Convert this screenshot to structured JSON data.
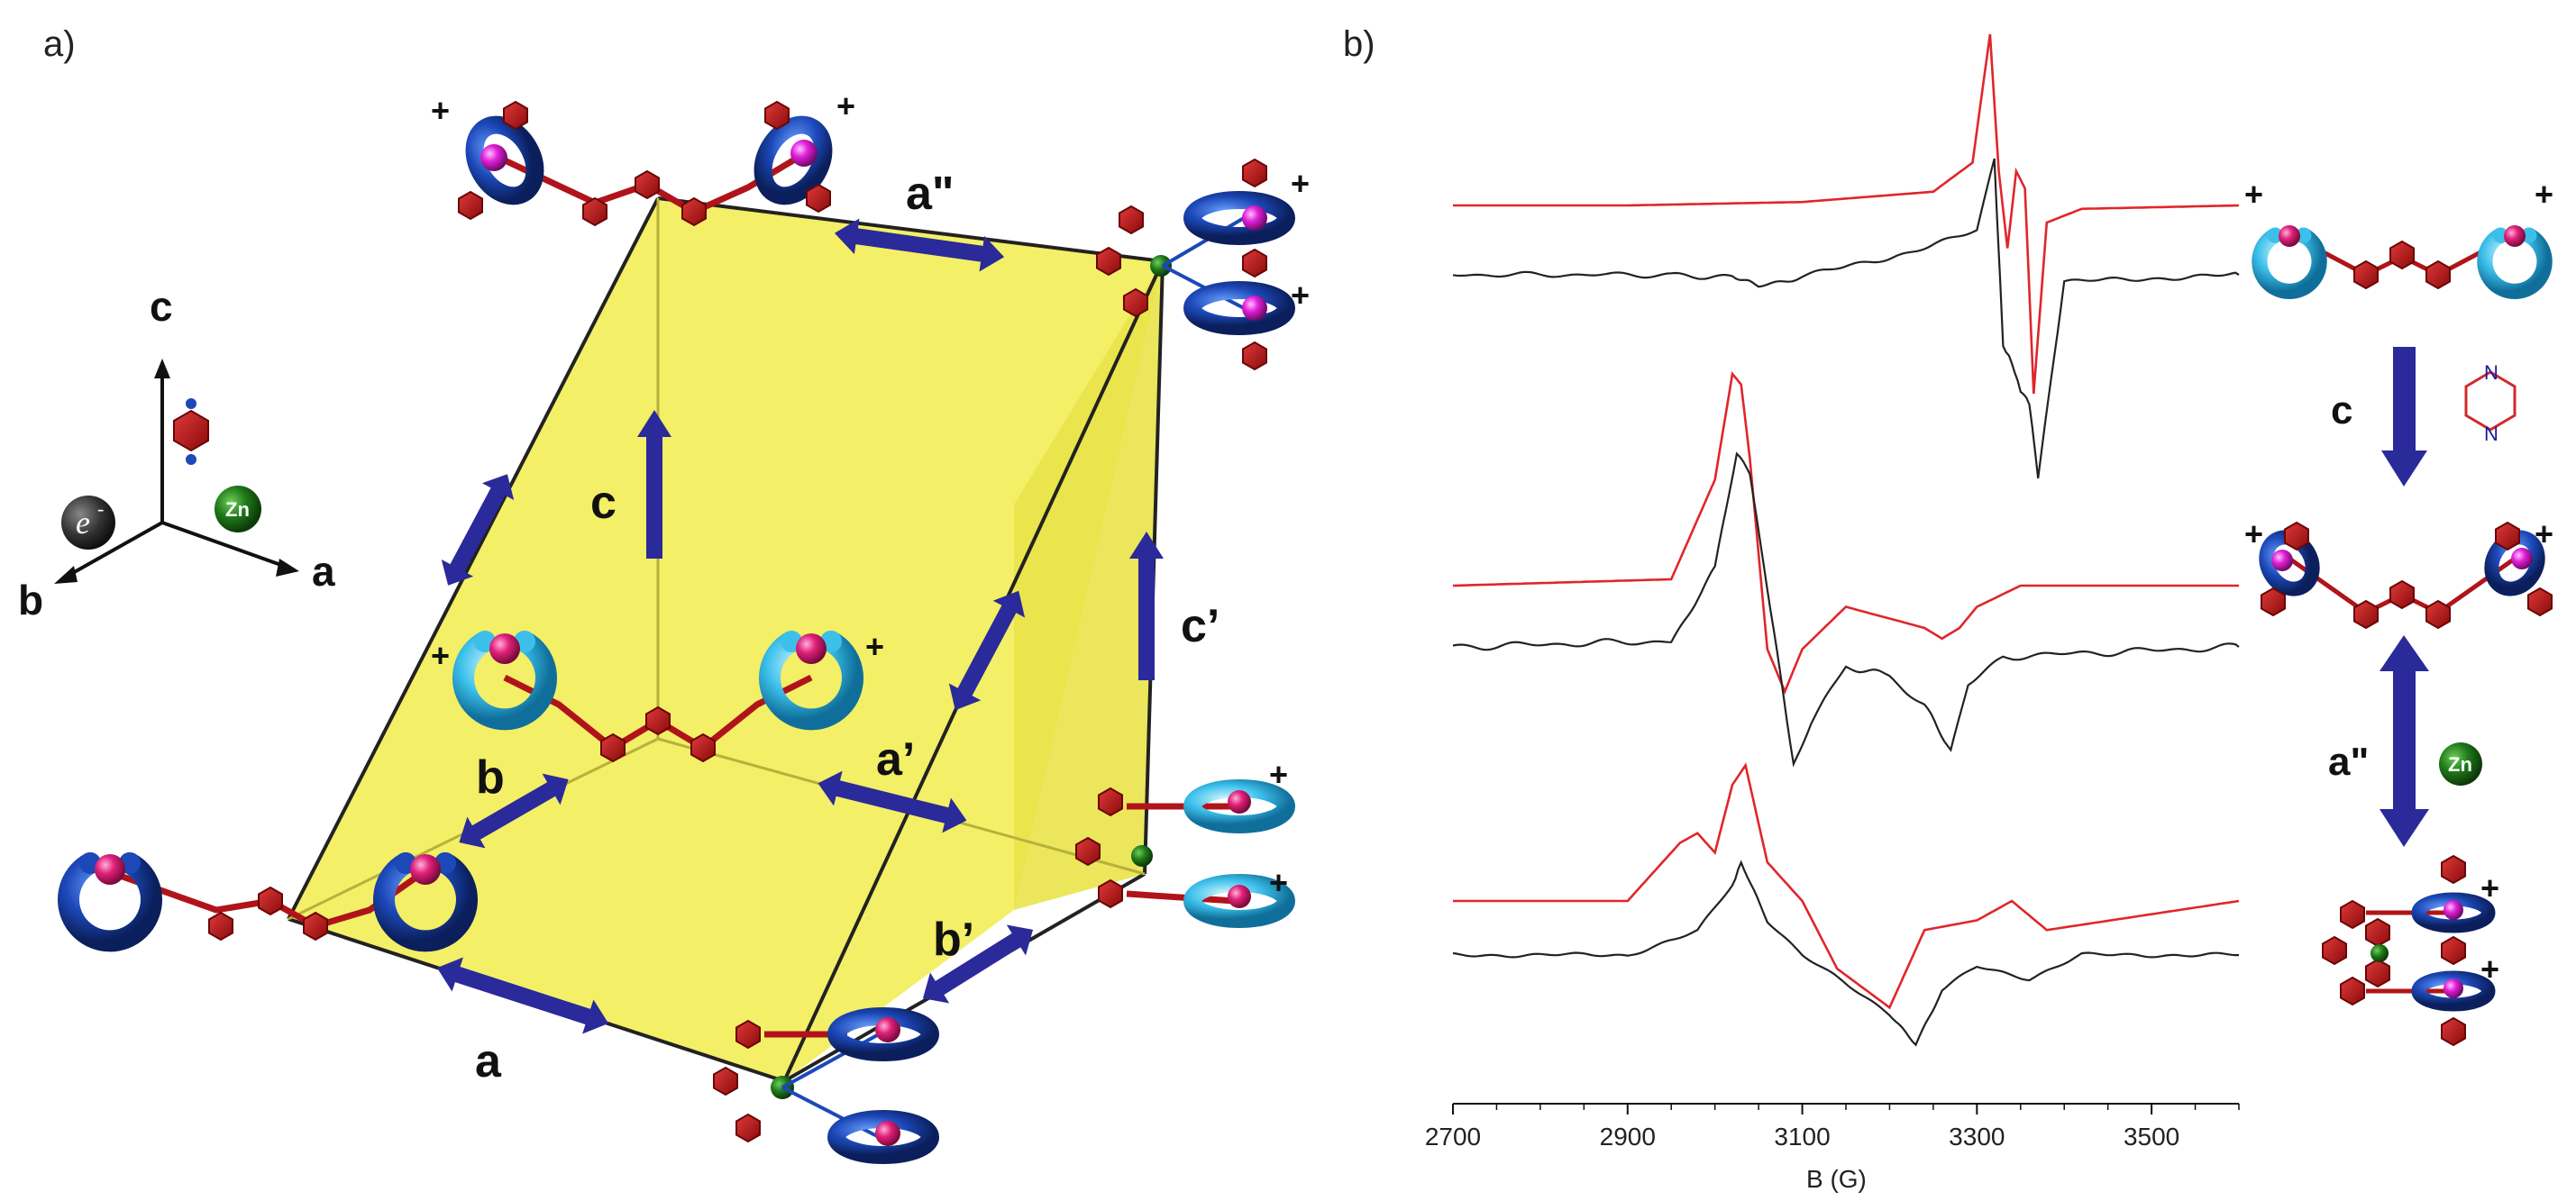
{
  "panel_a": {
    "label": "a)",
    "edges": {
      "a": "a",
      "b": "b",
      "c": "c",
      "a_prime": "a’",
      "b_prime": "b’",
      "c_prime": "c’",
      "a_double": "a\""
    },
    "axes": {
      "a": "a",
      "b": "b",
      "c": "c",
      "electron": "e",
      "electron_sup": "-",
      "zn": "Zn"
    },
    "charge": "+"
  },
  "panel_b": {
    "label": "b)",
    "steps": {
      "c": "c",
      "a_double": "a\""
    },
    "pyrazine_n": "N",
    "zn": "Zn",
    "charge": "+"
  },
  "chart_data": {
    "type": "line",
    "title": "",
    "xlabel": "B (G)",
    "ylabel": "",
    "xlim": [
      2700,
      3600
    ],
    "x_ticks": [
      2700,
      2900,
      3100,
      3300,
      3500
    ],
    "grid": false,
    "series_description": "EPR spectra, three stacked traces; red = simulated, black = experimental",
    "series": [
      {
        "name": "top-simulated",
        "color": "#e0262a",
        "x": [
          2700,
          2900,
          3100,
          3250,
          3295,
          3315,
          3325,
          3335,
          3345,
          3355,
          3365,
          3380,
          3420,
          3600
        ],
        "y": [
          0,
          0,
          0.02,
          0.08,
          0.25,
          1.0,
          0.2,
          -0.25,
          0.2,
          0.1,
          -1.1,
          -0.1,
          -0.02,
          0
        ]
      },
      {
        "name": "top-experimental",
        "color": "#222222",
        "x": [
          2700,
          2950,
          3020,
          3050,
          3100,
          3200,
          3300,
          3320,
          3330,
          3340,
          3350,
          3360,
          3370,
          3400,
          3600
        ],
        "y": [
          0,
          0,
          -0.02,
          -0.08,
          -0.01,
          0.12,
          0.3,
          0.8,
          -0.5,
          -0.6,
          -0.8,
          -0.9,
          -1.4,
          -0.05,
          0
        ]
      },
      {
        "name": "middle-simulated",
        "color": "#e0262a",
        "x": [
          2700,
          2950,
          3000,
          3020,
          3030,
          3040,
          3060,
          3080,
          3100,
          3150,
          3240,
          3260,
          3280,
          3300,
          3350,
          3600
        ],
        "y": [
          0,
          0.03,
          0.5,
          1.0,
          0.95,
          0.6,
          -0.3,
          -0.5,
          -0.3,
          -0.1,
          -0.2,
          -0.25,
          -0.2,
          -0.1,
          0,
          0
        ]
      },
      {
        "name": "middle-experimental",
        "color": "#222222",
        "x": [
          2700,
          2950,
          3000,
          3025,
          3040,
          3060,
          3090,
          3110,
          3150,
          3200,
          3240,
          3270,
          3290,
          3330,
          3600
        ],
        "y": [
          0,
          0.03,
          0.4,
          1.0,
          0.9,
          0.3,
          -0.6,
          -0.4,
          -0.1,
          -0.15,
          -0.3,
          -0.55,
          -0.2,
          -0.05,
          0
        ]
      },
      {
        "name": "bottom-simulated",
        "color": "#e0262a",
        "x": [
          2700,
          2900,
          2960,
          2980,
          3000,
          3020,
          3035,
          3060,
          3100,
          3140,
          3200,
          3240,
          3300,
          3340,
          3380,
          3600
        ],
        "y": [
          0,
          0,
          0.3,
          0.35,
          0.25,
          0.6,
          0.7,
          0.2,
          0,
          -0.35,
          -0.55,
          -0.15,
          -0.1,
          0,
          -0.15,
          0
        ]
      },
      {
        "name": "bottom-experimental",
        "color": "#222222",
        "x": [
          2700,
          2900,
          2980,
          3020,
          3030,
          3060,
          3100,
          3140,
          3200,
          3230,
          3260,
          3300,
          3360,
          3420,
          3600
        ],
        "y": [
          0,
          0,
          0.2,
          0.6,
          0.8,
          0.3,
          0,
          -0.2,
          -0.5,
          -0.75,
          -0.3,
          -0.1,
          -0.2,
          0,
          0
        ]
      }
    ]
  }
}
